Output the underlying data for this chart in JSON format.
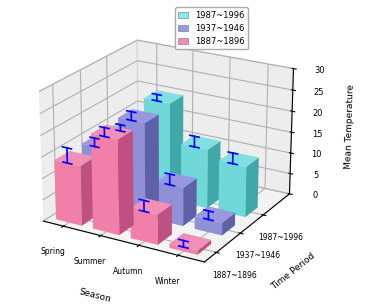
{
  "seasons": [
    "Spring",
    "Summer",
    "Autumn",
    "Winter"
  ],
  "time_periods": [
    "1887~1896",
    "1937~1946",
    "1987~1996"
  ],
  "values": [
    [
      14,
      22,
      7,
      1
    ],
    [
      14,
      22,
      9,
      3
    ],
    [
      14,
      23,
      14,
      12
    ]
  ],
  "errors": [
    [
      3.5,
      2.0,
      2.5,
      1.5
    ],
    [
      2.0,
      2.0,
      2.5,
      2.0
    ],
    [
      1.5,
      1.5,
      2.5,
      2.5
    ]
  ],
  "bar_face_colors": [
    "#F080A8",
    "#9090D8",
    "#70D8D8"
  ],
  "bar_side_colors": [
    "#C05080",
    "#6060A8",
    "#40A8A8"
  ],
  "bar_top_colors": [
    "#F090B8",
    "#9898E0",
    "#80E0E0"
  ],
  "legend_labels": [
    "1987~1996",
    "1937~1946",
    "1887~1896"
  ],
  "legend_colors": [
    "#80EEEE",
    "#9898E8",
    "#F888B8"
  ],
  "ylabel": "Mean Temperature",
  "zlim": [
    0,
    30
  ],
  "zticks": [
    0,
    5,
    10,
    15,
    20,
    25,
    30
  ],
  "bar_width": 0.7,
  "bar_depth": 0.55,
  "elev": 22,
  "azim": -60
}
